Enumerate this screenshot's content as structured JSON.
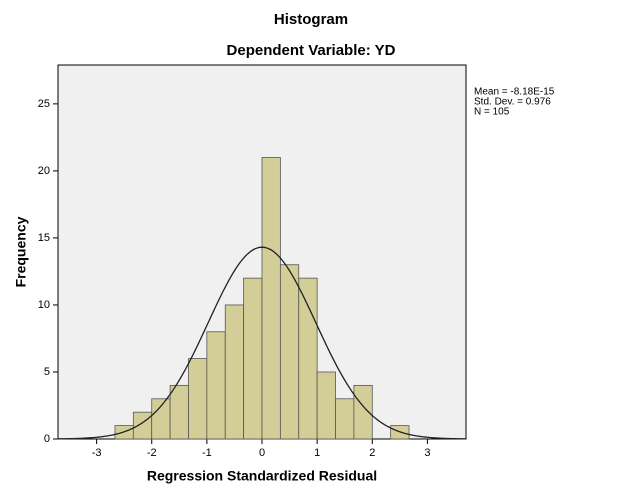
{
  "chart_data": {
    "type": "histogram",
    "title": "Histogram",
    "subtitle": "Dependent Variable: YD",
    "x_label": "Regression Standardized Residual",
    "y_label": "Frequency",
    "bins": [
      -2.6667,
      -2.3333,
      -2,
      -1.6667,
      -1.3333,
      -1,
      -0.6667,
      -0.3333,
      0,
      0.3333,
      0.6667,
      1,
      1.3333,
      1.6667,
      2,
      2.3333,
      2.6667
    ],
    "counts": [
      1,
      2,
      3,
      4,
      6,
      8,
      10,
      12,
      21,
      13,
      12,
      5,
      3,
      4,
      0,
      1
    ],
    "color": "#d3ce97",
    "xlim": [
      -3.7,
      3.7
    ],
    "xticks": [
      -3,
      -2,
      -1,
      0,
      1,
      2,
      3
    ],
    "ylim": [
      0,
      27.9
    ],
    "yticks": [
      0,
      5,
      10,
      15,
      20,
      25
    ],
    "grid": false,
    "stats": {
      "mean": -8.18e-15,
      "std_dev": 0.976,
      "n": 105,
      "labels": [
        "Mean = -8.18E-15",
        "Std. Dev. = 0.976",
        "N = 105"
      ]
    }
  }
}
